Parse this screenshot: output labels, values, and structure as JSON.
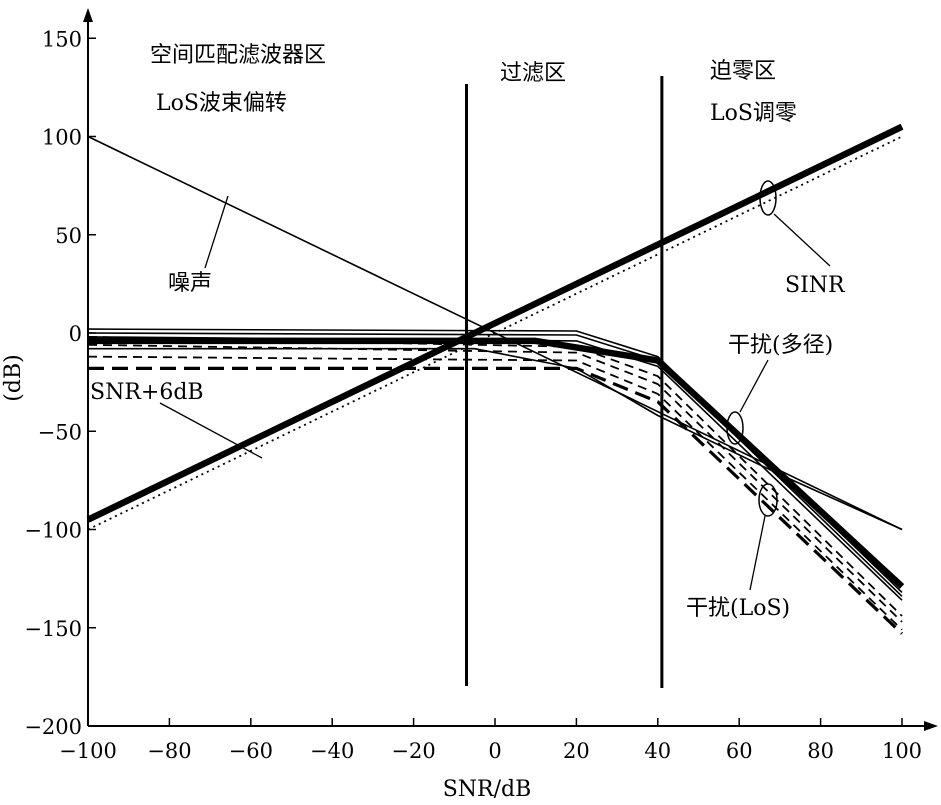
{
  "chart_data": {
    "type": "line",
    "xlabel": "SNR/dB",
    "ylabel": "(dB)",
    "xlim": [
      -100,
      100
    ],
    "ylim": [
      -200,
      160
    ],
    "x_ticks": [
      -100,
      -80,
      -60,
      -40,
      -20,
      0,
      20,
      40,
      60,
      80,
      100
    ],
    "y_ticks": [
      150,
      100,
      50,
      0,
      -50,
      -100,
      -150,
      -200
    ],
    "x_tick_labels": [
      "−100",
      "−80",
      "−60",
      "−40",
      "−20",
      "0",
      "20",
      "40",
      "60",
      "80",
      "100"
    ],
    "y_tick_labels": [
      "150",
      "100",
      "50",
      "0",
      "−50",
      "−100",
      "−150",
      "−200"
    ],
    "region_boundaries": [
      -7,
      41
    ],
    "annotations": {
      "region_left_line1": "空间匹配滤波器区",
      "region_left_line2": "LoS波束偏转",
      "region_mid": "过滤区",
      "region_right_line1": "迫零区",
      "region_right_line2": "LoS调零",
      "noise": "噪声",
      "sinr": "SINR",
      "interference_multipath": "干扰(多径)",
      "interference_los": "干扰(LoS)",
      "snr_plus_6db": "SNR+6dB"
    },
    "series": [
      {
        "style": "thin-solid",
        "x": [
          -100,
          100
        ],
        "y": [
          100,
          -100
        ]
      },
      {
        "style": "thick-solid",
        "x": [
          -100,
          100
        ],
        "y": [
          -95,
          105
        ]
      },
      {
        "style": "dotted",
        "x": [
          -100,
          100
        ],
        "y": [
          -100,
          100
        ]
      },
      {
        "style": "thin-solid",
        "x": [
          -100,
          20,
          40,
          100
        ],
        "y": [
          2,
          1,
          -12,
          -132
        ]
      },
      {
        "style": "thin-solid",
        "x": [
          -100,
          20,
          40,
          100
        ],
        "y": [
          0,
          -1,
          -14,
          -134
        ]
      },
      {
        "style": "thin-solid",
        "x": [
          -100,
          20,
          40,
          100
        ],
        "y": [
          -2,
          -4,
          -17,
          -136
        ]
      },
      {
        "style": "thick-solid",
        "x": [
          -100,
          10,
          40,
          100
        ],
        "y": [
          -4,
          -4,
          -14,
          -129
        ]
      },
      {
        "style": "thin-solid",
        "x": [
          -100,
          -5,
          20,
          40,
          70,
          100
        ],
        "y": [
          -8,
          -8,
          -18,
          -42,
          -72,
          -100
        ]
      },
      {
        "style": "dashed",
        "x": [
          -100,
          20,
          40,
          100
        ],
        "y": [
          -2,
          -7,
          -22,
          -144
        ]
      },
      {
        "style": "dashed",
        "x": [
          -100,
          20,
          40,
          100
        ],
        "y": [
          -6,
          -10,
          -26,
          -147
        ]
      },
      {
        "style": "dashed",
        "x": [
          -100,
          20,
          40,
          100
        ],
        "y": [
          -12,
          -14,
          -31,
          -151
        ]
      },
      {
        "style": "thick-dashed",
        "x": [
          -100,
          20,
          40,
          100
        ],
        "y": [
          -18,
          -18,
          -35,
          -153
        ]
      }
    ]
  }
}
